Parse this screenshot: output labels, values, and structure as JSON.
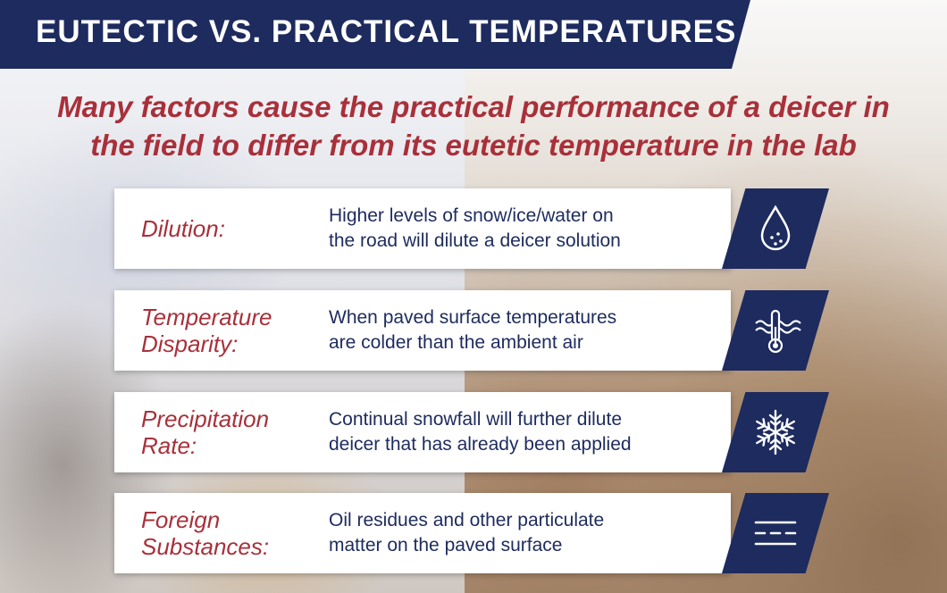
{
  "header": {
    "title": "EUTECTIC VS. PRACTICAL TEMPERATURES"
  },
  "subtitle": {
    "line1": "Many factors cause the practical performance of a deicer in",
    "line2": "the field to differ from its eutetic temperature in the lab"
  },
  "factors": [
    {
      "label_line1": "Dilution:",
      "label_line2": "",
      "desc_line1": "Higher levels of snow/ice/water on",
      "desc_line2": "the road will dilute a deicer solution",
      "icon": "water-drop-icon"
    },
    {
      "label_line1": "Temperature",
      "label_line2": "Disparity:",
      "desc_line1": "When paved surface temperatures",
      "desc_line2": "are colder than the ambient air",
      "icon": "thermometer-heat-icon"
    },
    {
      "label_line1": "Precipitation",
      "label_line2": "Rate:",
      "desc_line1": "Continual snowfall will further dilute",
      "desc_line2": "deicer that has already been applied",
      "icon": "snowflake-icon"
    },
    {
      "label_line1": "Foreign",
      "label_line2": "Substances:",
      "desc_line1": "Oil residues and other particulate",
      "desc_line2": "matter on the paved surface",
      "icon": "dashed-lines-icon"
    }
  ],
  "colors": {
    "navy": "#1d2b5e",
    "accent_red": "#a8303a",
    "card_bg": "#ffffff"
  }
}
